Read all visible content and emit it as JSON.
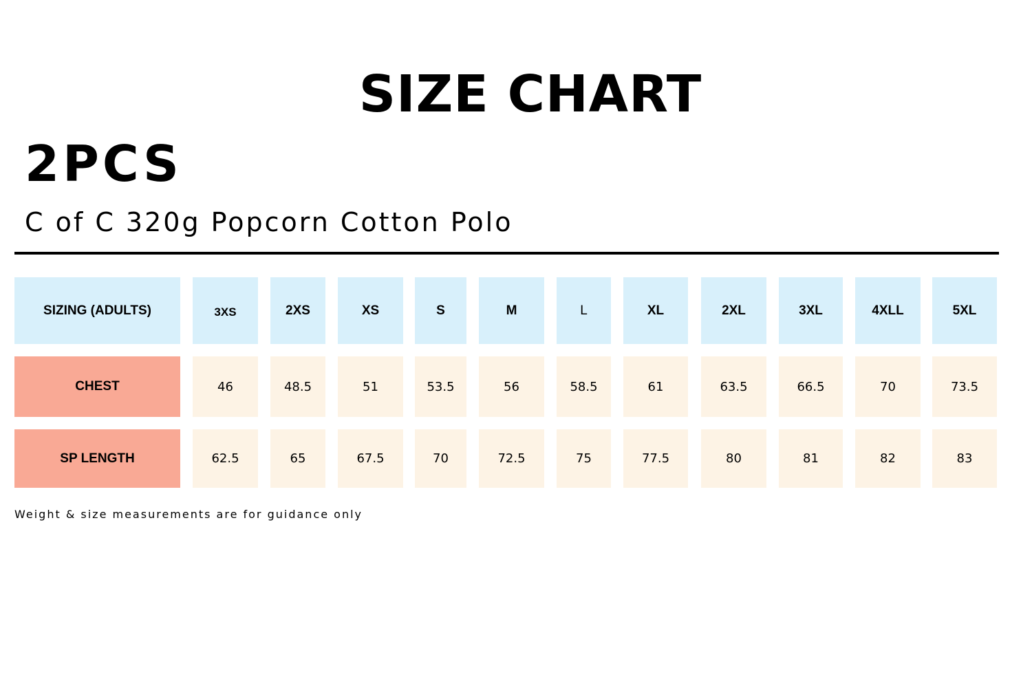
{
  "title": "SIZE CHART",
  "pieces": "2PCS",
  "product": "C of C 320g Popcorn Cotton Polo",
  "colors": {
    "header_bg": "#d8f0fb",
    "label_bg": "#f9a995",
    "value_bg": "#fdf3e5",
    "text": "#000000"
  },
  "table": {
    "header_label": "SIZING (ADULTS)",
    "sizes": [
      "3XS",
      "2XS",
      "XS",
      "S",
      "M",
      "L",
      "XL",
      "2XL",
      "3XL",
      "4XLL",
      "5XL"
    ],
    "rows": [
      {
        "label": "CHEST",
        "values": [
          "46",
          "48.5",
          "51",
          "53.5",
          "56",
          "58.5",
          "61",
          "63.5",
          "66.5",
          "70",
          "73.5"
        ]
      },
      {
        "label": "SP LENGTH",
        "values": [
          "62.5",
          "65",
          "67.5",
          "70",
          "72.5",
          "75",
          "77.5",
          "80",
          "81",
          "82",
          "83"
        ]
      }
    ]
  },
  "footnote": "Weight & size measurements are for guidance only"
}
